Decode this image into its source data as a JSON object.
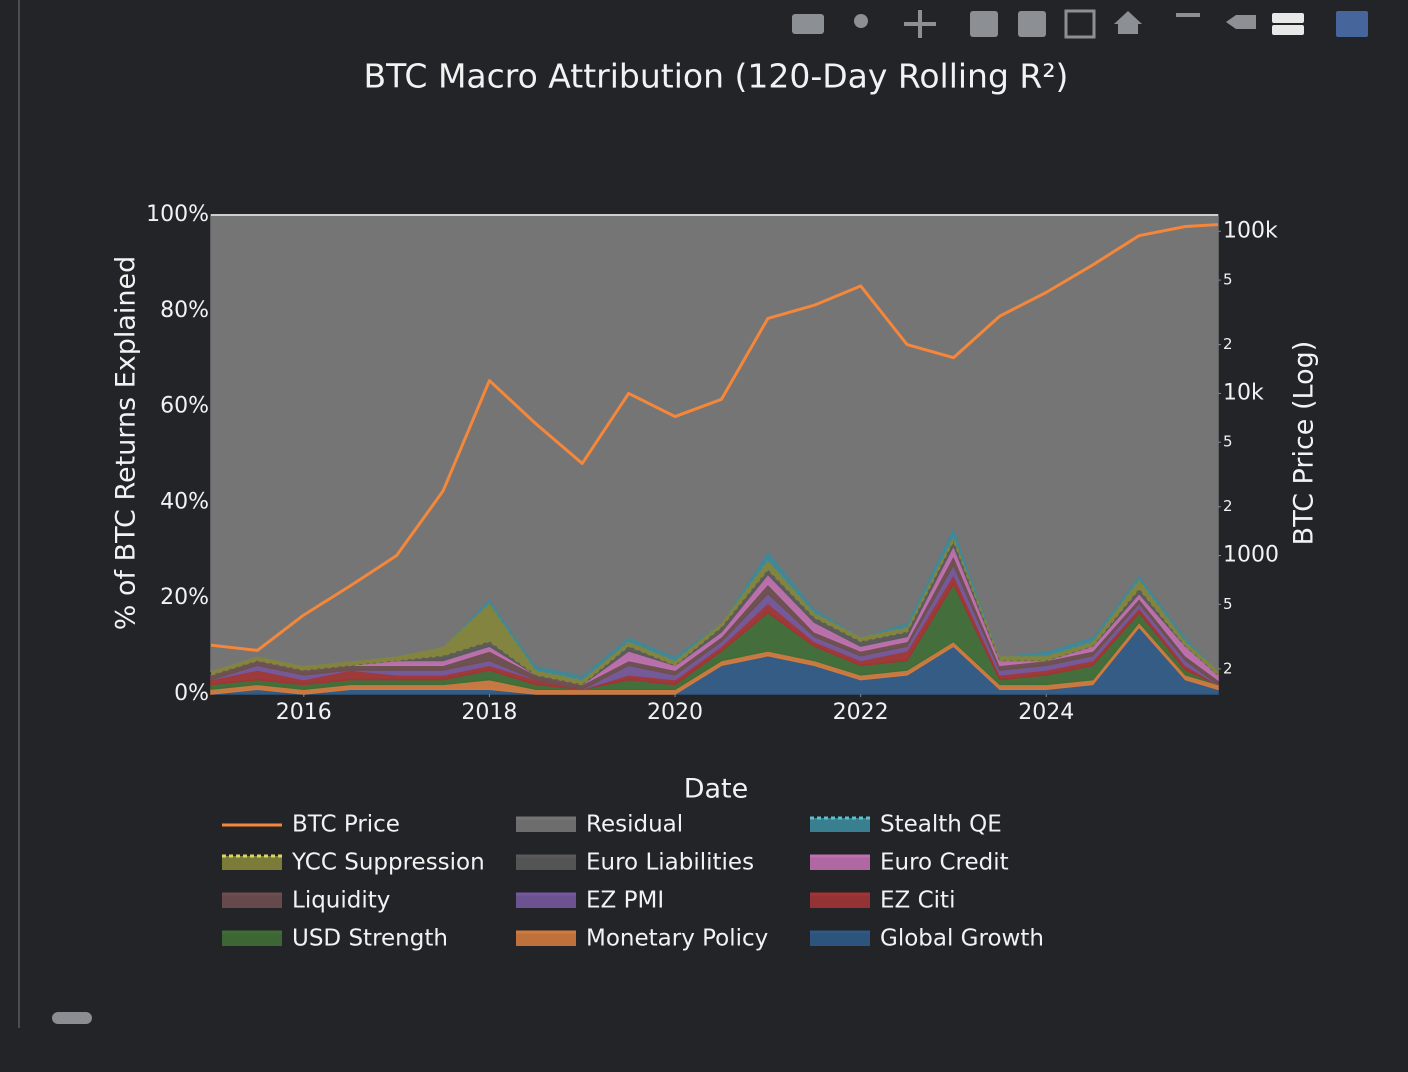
{
  "chart_data": {
    "type": "stacked_area_with_line",
    "title": "BTC Macro Attribution (120-Day Rolling R²)",
    "xlabel": "Date",
    "ylabel": "% of BTC Returns Explained",
    "y2label": "BTC Price (Log)",
    "x": [
      2015.0,
      2015.5,
      2016.0,
      2016.5,
      2017.0,
      2017.5,
      2018.0,
      2018.5,
      2019.0,
      2019.5,
      2020.0,
      2020.5,
      2021.0,
      2021.5,
      2022.0,
      2022.5,
      2023.0,
      2023.5,
      2024.0,
      2024.5,
      2025.0,
      2025.5,
      2025.85
    ],
    "xlim": [
      2015.0,
      2025.85
    ],
    "xticks": [
      2016,
      2018,
      2020,
      2022,
      2024
    ],
    "ylim": [
      0,
      100
    ],
    "yticks": [
      {
        "value": 0,
        "label": "0%"
      },
      {
        "value": 20,
        "label": "20%"
      },
      {
        "value": 40,
        "label": "40%"
      },
      {
        "value": 60,
        "label": "60%"
      },
      {
        "value": 80,
        "label": "80%"
      },
      {
        "value": 100,
        "label": "100%"
      }
    ],
    "y2lim": [
      140,
      126000
    ],
    "y2log": true,
    "y2ticks": [
      {
        "value": 200,
        "label": "2"
      },
      {
        "value": 500,
        "label": "5"
      },
      1000,
      {
        "value": 2000,
        "label": "2"
      },
      {
        "value": 5000,
        "label": "5"
      },
      {
        "value": 10000,
        "label": "10k"
      },
      {
        "value": 20000,
        "label": "2"
      },
      {
        "value": 50000,
        "label": "5"
      },
      {
        "value": 100000,
        "label": "100k"
      }
    ],
    "series": [
      {
        "name": "BTC Price",
        "color": "#f5873a",
        "axis": "y2",
        "values": [
          280,
          260,
          430,
          650,
          1000,
          2500,
          12000,
          6500,
          3700,
          10000,
          7200,
          9200,
          29000,
          35000,
          46000,
          20000,
          16600,
          30000,
          42000,
          62000,
          94000,
          107000,
          110000
        ]
      },
      {
        "name": "Residual",
        "color": "#757575",
        "values": [
          95,
          92,
          94,
          93,
          92,
          90,
          80,
          94,
          96,
          88,
          92,
          85,
          70,
          82,
          88,
          85,
          65,
          92,
          91,
          88,
          75,
          88,
          95
        ]
      },
      {
        "name": "Stealth QE",
        "color": "#3d8a9a",
        "values": [
          0,
          0,
          0,
          0,
          0,
          0,
          1,
          1,
          1,
          1,
          1,
          0,
          2,
          1,
          0,
          1,
          2,
          0,
          1,
          1,
          1,
          1,
          0
        ]
      },
      {
        "name": "YCC Suppression",
        "color": "#86863c",
        "values": [
          1,
          1,
          1,
          1,
          1,
          2,
          8,
          1,
          1,
          1,
          1,
          1,
          2,
          1,
          1,
          1,
          1,
          1,
          1,
          1,
          2,
          1,
          1
        ]
      },
      {
        "name": "Euro Liabilities",
        "color": "#5a5a5a",
        "values": [
          0,
          0,
          0,
          0,
          0,
          1,
          1,
          0,
          0,
          1,
          0,
          1,
          1,
          1,
          1,
          1,
          1,
          0,
          0,
          0,
          1,
          0,
          0
        ]
      },
      {
        "name": "Euro Credit",
        "color": "#c070b0",
        "values": [
          0,
          0,
          0,
          0,
          1,
          1,
          1,
          0,
          0,
          2,
          1,
          1,
          2,
          2,
          1,
          1,
          2,
          1,
          0,
          1,
          1,
          2,
          1
        ]
      },
      {
        "name": "Liquidity",
        "color": "#6e4f4f",
        "values": [
          1,
          1,
          1,
          1,
          1,
          1,
          2,
          1,
          1,
          1,
          1,
          1,
          2,
          1,
          1,
          1,
          2,
          1,
          1,
          1,
          1,
          1,
          1
        ]
      },
      {
        "name": "EZ PMI",
        "color": "#76589c",
        "values": [
          0,
          1,
          1,
          0,
          1,
          1,
          1,
          0,
          0,
          2,
          1,
          1,
          2,
          1,
          1,
          1,
          2,
          1,
          1,
          1,
          1,
          1,
          0
        ]
      },
      {
        "name": "EZ Citi",
        "color": "#a23434",
        "values": [
          1,
          2,
          1,
          2,
          1,
          1,
          1,
          1,
          0,
          1,
          1,
          1,
          2,
          1,
          1,
          2,
          2,
          1,
          1,
          1,
          1,
          1,
          0
        ]
      },
      {
        "name": "USD Strength",
        "color": "#3f6e35",
        "values": [
          1,
          1,
          1,
          1,
          1,
          1,
          2,
          1,
          0,
          2,
          1,
          2,
          8,
          3,
          2,
          2,
          12,
          1,
          2,
          3,
          2,
          1,
          0
        ]
      },
      {
        "name": "Monetary Policy",
        "color": "#d07a3e",
        "values": [
          1,
          1,
          1,
          1,
          1,
          1,
          2,
          1,
          1,
          1,
          1,
          1,
          1,
          1,
          1,
          1,
          1,
          1,
          1,
          1,
          1,
          1,
          1
        ]
      },
      {
        "name": "Global Growth",
        "color": "#2f5a86",
        "values": [
          0,
          1,
          0,
          1,
          1,
          1,
          1,
          0,
          0,
          0,
          0,
          6,
          8,
          6,
          3,
          4,
          10,
          1,
          1,
          2,
          14,
          3,
          1
        ]
      }
    ]
  }
}
